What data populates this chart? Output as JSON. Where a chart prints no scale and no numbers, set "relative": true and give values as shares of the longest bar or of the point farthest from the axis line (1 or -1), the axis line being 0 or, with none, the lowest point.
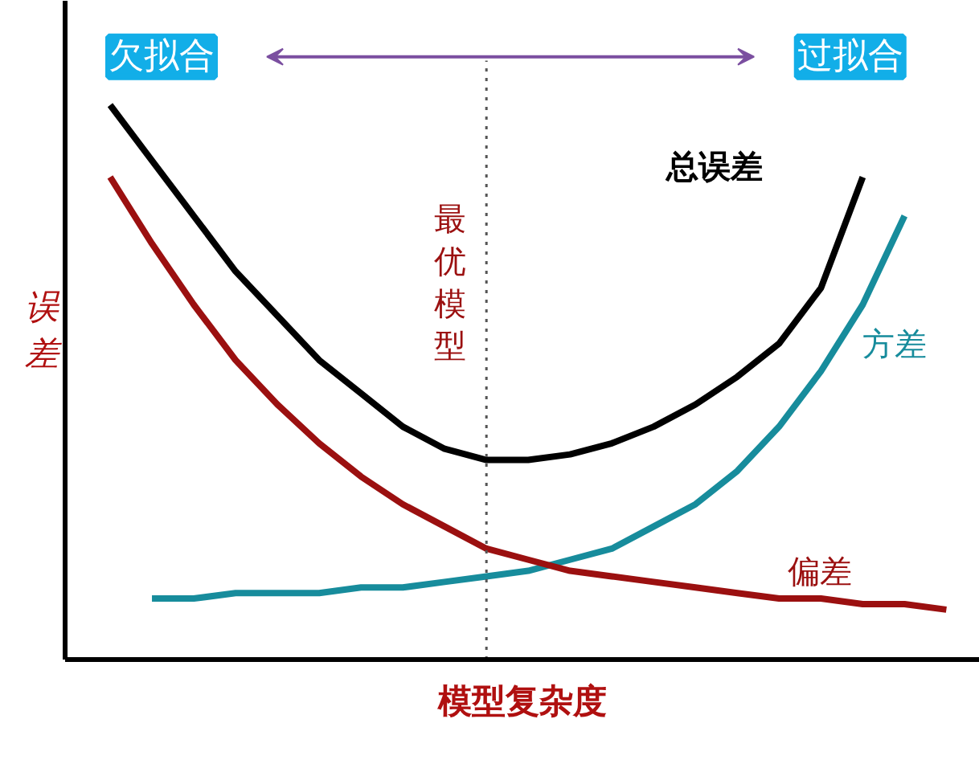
{
  "chart_data": {
    "type": "line",
    "relative": true,
    "xlabel": "模型复杂度",
    "ylabel": "误差",
    "categories": [
      null,
      null,
      null,
      null,
      null,
      null,
      null,
      null,
      null,
      null,
      null,
      null,
      null,
      null,
      null,
      null,
      null,
      null,
      null,
      null,
      null
    ],
    "series": [
      {
        "name": "总误差",
        "color": "#000000",
        "values": [
          1,
          0.9,
          0.8,
          0.7,
          0.62,
          0.54,
          0.48,
          0.42,
          0.38,
          0.36,
          0.36,
          0.37,
          0.39,
          0.42,
          0.46,
          0.51,
          0.57,
          0.67,
          0.87,
          null,
          null
        ]
      },
      {
        "name": "方差",
        "color": "#178c9c",
        "values": [
          null,
          0.11,
          0.11,
          0.12,
          0.12,
          0.12,
          0.13,
          0.13,
          0.14,
          0.15,
          0.16,
          0.18,
          0.2,
          0.24,
          0.28,
          0.34,
          0.42,
          0.52,
          0.64,
          0.8,
          null
        ]
      },
      {
        "name": "偏差",
        "color": "#9b1010",
        "values": [
          0.87,
          0.75,
          0.64,
          0.54,
          0.46,
          0.39,
          0.33,
          0.28,
          0.24,
          0.2,
          0.18,
          0.16,
          0.15,
          0.14,
          0.13,
          0.12,
          0.11,
          0.11,
          0.1,
          0.1,
          0.09
        ]
      }
    ],
    "annotations": [
      "欠拟合",
      "过拟合",
      "最优模型"
    ],
    "legend": false,
    "marker": "none",
    "line_style": "solid"
  }
}
